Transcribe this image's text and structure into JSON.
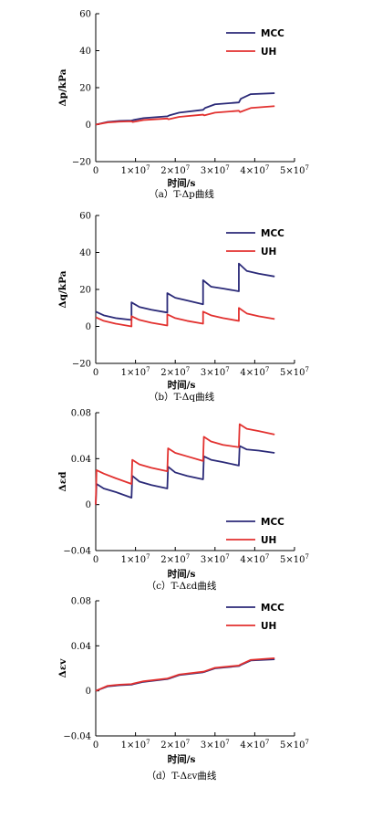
{
  "colors": {
    "mcc": "#2b2a78",
    "uh": "#e2312f",
    "axis": "#000000"
  },
  "chart_data": [
    {
      "type": "line",
      "caption": "（a）T-Δp曲线",
      "xlabel": "时间/s",
      "ylabel": "Δp/kPa",
      "xlim": [
        0,
        50000000
      ],
      "ylim": [
        -20,
        60
      ],
      "yticks": [
        "−20",
        "0",
        "20",
        "40",
        "60"
      ],
      "ytick_values": [
        -20,
        0,
        20,
        40,
        60
      ],
      "xticks": [
        "0",
        "1×10",
        "2×10",
        "3×10",
        "4×10",
        "5×10"
      ],
      "xtick_exp": "7",
      "xtick_values": [
        0,
        10000000,
        20000000,
        30000000,
        40000000,
        50000000
      ],
      "legend_position": "top-right",
      "series": [
        {
          "name": "MCC",
          "color": "#2b2a78",
          "x": [
            0,
            3000000,
            6000000,
            9000000,
            9500000,
            12000000,
            18000000,
            18500000,
            21000000,
            27000000,
            27500000,
            30000000,
            36000000,
            36500000,
            39000000,
            45000000
          ],
          "y": [
            0,
            1.5,
            2.0,
            2.2,
            2.5,
            3.5,
            4.5,
            5.0,
            6.5,
            8.0,
            9.0,
            11.0,
            12.0,
            14.0,
            16.5,
            17.0
          ]
        },
        {
          "name": "UH",
          "color": "#e2312f",
          "x": [
            0,
            3000000,
            6000000,
            9000000,
            9300000,
            12000000,
            18000000,
            18300000,
            21000000,
            27000000,
            27300000,
            30000000,
            36000000,
            36300000,
            39000000,
            45000000
          ],
          "y": [
            0,
            1.2,
            1.6,
            1.8,
            1.4,
            2.5,
            3.3,
            2.9,
            4.2,
            5.4,
            5.0,
            6.5,
            7.5,
            6.8,
            9.0,
            10.0
          ]
        }
      ]
    },
    {
      "type": "line",
      "caption": "（b）T-Δq曲线",
      "xlabel": "时间/s",
      "ylabel": "Δq/kPa",
      "xlim": [
        0,
        50000000
      ],
      "ylim": [
        -20,
        60
      ],
      "yticks": [
        "−20",
        "0",
        "20",
        "40",
        "60"
      ],
      "ytick_values": [
        -20,
        0,
        20,
        40,
        60
      ],
      "xticks": [
        "0",
        "1×10",
        "2×10",
        "3×10",
        "4×10",
        "5×10"
      ],
      "xtick_exp": "7",
      "xtick_values": [
        0,
        10000000,
        20000000,
        30000000,
        40000000,
        50000000
      ],
      "legend_position": "top-right",
      "series": [
        {
          "name": "MCC",
          "color": "#2b2a78",
          "x": [
            0,
            2000000,
            5000000,
            9000000,
            9000001,
            11000000,
            14000000,
            18000000,
            18000001,
            20000000,
            23000000,
            27000000,
            27000001,
            29000000,
            32000000,
            36000000,
            36000001,
            38000000,
            41000000,
            45000000
          ],
          "y": [
            8,
            6,
            4.5,
            3.5,
            13,
            10.5,
            9,
            7.5,
            18,
            15.5,
            14,
            12,
            25,
            21.5,
            20.5,
            19,
            34,
            30,
            28.5,
            27
          ]
        },
        {
          "name": "UH",
          "color": "#e2312f",
          "x": [
            0,
            2000000,
            5000000,
            9000000,
            9000001,
            11000000,
            14000000,
            18000000,
            18000001,
            20000000,
            23000000,
            27000000,
            27000001,
            29000000,
            32000000,
            36000000,
            36000001,
            38000000,
            41000000,
            45000000
          ],
          "y": [
            5,
            3,
            1.5,
            0,
            5.5,
            3.5,
            2,
            0.5,
            6.5,
            4.5,
            3,
            1.5,
            8,
            6,
            4.5,
            3,
            10,
            7,
            5.5,
            4
          ]
        }
      ]
    },
    {
      "type": "line",
      "caption": "（c）T-Δεd曲线",
      "xlabel": "时间/s",
      "ylabel": "Δεd",
      "xlim": [
        0,
        50000000
      ],
      "ylim": [
        -0.04,
        0.08
      ],
      "yticks": [
        "−0.04",
        "0",
        "0.04",
        "0.08"
      ],
      "ytick_values": [
        -0.04,
        0,
        0.04,
        0.08
      ],
      "xticks": [
        "0",
        "1×10",
        "2×10",
        "3×10",
        "4×10",
        "5×10"
      ],
      "xtick_exp": "7",
      "xtick_values": [
        0,
        10000000,
        20000000,
        30000000,
        40000000,
        50000000
      ],
      "legend_position": "bottom-right",
      "series": [
        {
          "name": "MCC",
          "color": "#2b2a78",
          "x": [
            0,
            200000,
            2000000,
            5000000,
            9000000,
            9200000,
            11000000,
            14000000,
            18000000,
            18200000,
            20000000,
            23000000,
            27000000,
            27200000,
            29000000,
            32000000,
            36000000,
            36200000,
            38000000,
            41000000,
            45000000
          ],
          "y": [
            0,
            0.018,
            0.014,
            0.011,
            0.006,
            0.025,
            0.02,
            0.017,
            0.014,
            0.033,
            0.028,
            0.025,
            0.022,
            0.042,
            0.039,
            0.037,
            0.034,
            0.051,
            0.048,
            0.047,
            0.045
          ]
        },
        {
          "name": "UH",
          "color": "#e2312f",
          "x": [
            0,
            200000,
            2000000,
            5000000,
            9000000,
            9200000,
            11000000,
            14000000,
            18000000,
            18200000,
            20000000,
            23000000,
            27000000,
            27200000,
            29000000,
            32000000,
            36000000,
            36200000,
            38000000,
            41000000,
            45000000
          ],
          "y": [
            0,
            0.03,
            0.027,
            0.023,
            0.018,
            0.039,
            0.035,
            0.032,
            0.029,
            0.049,
            0.045,
            0.042,
            0.038,
            0.059,
            0.055,
            0.052,
            0.05,
            0.07,
            0.066,
            0.064,
            0.061
          ]
        }
      ]
    },
    {
      "type": "line",
      "caption": "（d）T-Δεv曲线",
      "xlabel": "时间/s",
      "ylabel": "Δεv",
      "xlim": [
        0,
        50000000
      ],
      "ylim": [
        -0.04,
        0.08
      ],
      "yticks": [
        "−0.04",
        "0",
        "0.04",
        "0.08"
      ],
      "ytick_values": [
        -0.04,
        0,
        0.04,
        0.08
      ],
      "xticks": [
        "0",
        "1×10",
        "2×10",
        "3×10",
        "4×10",
        "5×10"
      ],
      "xtick_exp": "7",
      "xtick_values": [
        0,
        10000000,
        20000000,
        30000000,
        40000000,
        50000000
      ],
      "legend_position": "top-right",
      "series": [
        {
          "name": "MCC",
          "color": "#2b2a78",
          "x": [
            0,
            3000000,
            6000000,
            9000000,
            9500000,
            12000000,
            18000000,
            18500000,
            21000000,
            27000000,
            27500000,
            30000000,
            36000000,
            36500000,
            39000000,
            45000000
          ],
          "y": [
            0,
            0.004,
            0.005,
            0.0055,
            0.006,
            0.008,
            0.0105,
            0.011,
            0.014,
            0.0165,
            0.017,
            0.02,
            0.022,
            0.023,
            0.027,
            0.028
          ]
        },
        {
          "name": "UH",
          "color": "#e2312f",
          "x": [
            0,
            3000000,
            6000000,
            9000000,
            9500000,
            12000000,
            18000000,
            18500000,
            21000000,
            27000000,
            27500000,
            30000000,
            36000000,
            36500000,
            39000000,
            45000000
          ],
          "y": [
            0,
            0.0045,
            0.0055,
            0.006,
            0.0065,
            0.0085,
            0.011,
            0.0115,
            0.0145,
            0.017,
            0.0175,
            0.0205,
            0.0225,
            0.0235,
            0.0275,
            0.029
          ]
        }
      ]
    }
  ]
}
